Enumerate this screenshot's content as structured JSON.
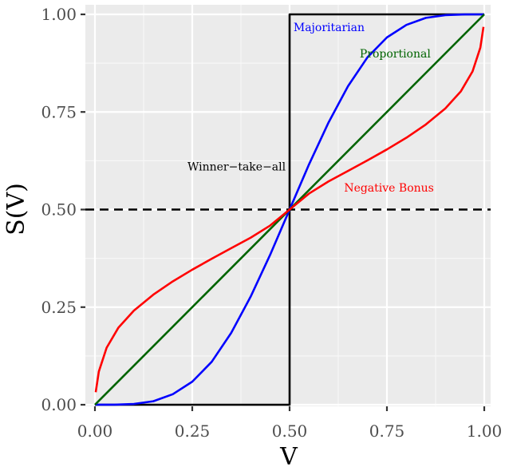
{
  "chart_data": {
    "type": "line",
    "title": "",
    "xlabel": "V",
    "ylabel": "S(V)",
    "xlim": [
      0,
      1
    ],
    "ylim": [
      0,
      1
    ],
    "grid": true,
    "x_ticks": [
      "0.00",
      "0.25",
      "0.50",
      "0.75",
      "1.00"
    ],
    "y_ticks": [
      "0.00",
      "0.25",
      "0.50",
      "0.75",
      "1.00"
    ],
    "series": [
      {
        "color": "#000000",
        "x": [
          0,
          0.5,
          0.5,
          1
        ],
        "y": [
          0,
          0,
          1,
          1
        ]
      },
      {
        "color": "#0000ff",
        "x": [
          0,
          0.05,
          0.1,
          0.15,
          0.2,
          0.25,
          0.3,
          0.35,
          0.4,
          0.45,
          0.5,
          0.55,
          0.6,
          0.65,
          0.7,
          0.75,
          0.8,
          0.85,
          0.9,
          0.95,
          1
        ],
        "y": [
          0,
          0.0001,
          0.002,
          0.009,
          0.027,
          0.059,
          0.11,
          0.184,
          0.277,
          0.384,
          0.5,
          0.616,
          0.723,
          0.816,
          0.89,
          0.941,
          0.973,
          0.991,
          0.998,
          0.9999,
          1
        ]
      },
      {
        "color": "#006400",
        "x": [
          0,
          1
        ],
        "y": [
          0,
          1
        ]
      },
      {
        "color": "#ff0000",
        "x": [
          0.002,
          0.01,
          0.03,
          0.06,
          0.1,
          0.15,
          0.2,
          0.25,
          0.3,
          0.35,
          0.4,
          0.45,
          0.5,
          0.55,
          0.6,
          0.65,
          0.7,
          0.75,
          0.8,
          0.85,
          0.9,
          0.94,
          0.97,
          0.99,
          0.998
        ],
        "y": [
          0.032,
          0.085,
          0.146,
          0.197,
          0.241,
          0.282,
          0.316,
          0.346,
          0.374,
          0.401,
          0.428,
          0.459,
          0.5,
          0.541,
          0.572,
          0.599,
          0.626,
          0.654,
          0.684,
          0.718,
          0.759,
          0.803,
          0.854,
          0.915,
          0.968
        ]
      }
    ],
    "reference_lines": [
      {
        "y": 0.5,
        "style": "dashed",
        "color": "#000000"
      }
    ],
    "annotations": [
      {
        "text": "Majoritarian",
        "x": 0.51,
        "y": 0.957,
        "color": "#0000ff",
        "anchor": "start"
      },
      {
        "text": "Proportional",
        "x": 0.68,
        "y": 0.89,
        "color": "#006400",
        "anchor": "start"
      },
      {
        "text": "Winner−take−all",
        "x": 0.49,
        "y": 0.6,
        "color": "#000000",
        "anchor": "end"
      },
      {
        "text": "Negative Bonus",
        "x": 0.64,
        "y": 0.546,
        "color": "#ff0000",
        "anchor": "start"
      }
    ]
  }
}
